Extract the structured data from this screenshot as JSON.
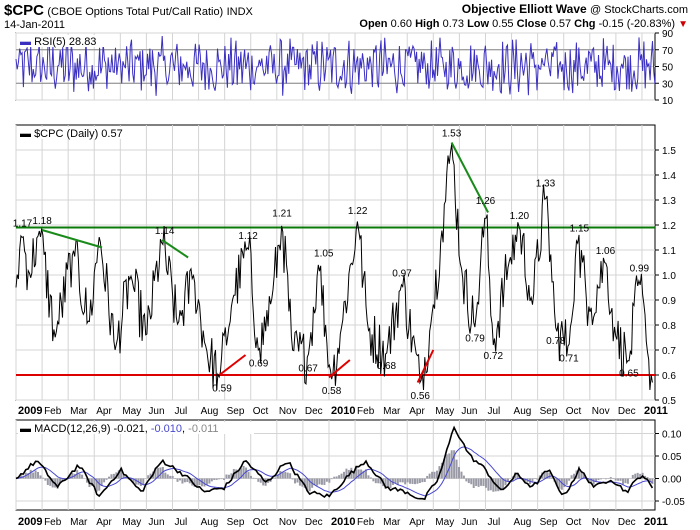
{
  "header": {
    "symbol": "$CPC",
    "name": "(CBOE Options Total Put/Call Ratio)",
    "exchange": "INDX",
    "date": "14-Jan-2011",
    "credit": "Objective Elliott Wave",
    "credit_source": "@ StockCharts.com",
    "open_label": "Open",
    "open": "0.60",
    "high_label": "High",
    "high": "0.73",
    "low_label": "Low",
    "low": "0.55",
    "close_label": "Close",
    "close": "0.57",
    "chg_label": "Chg",
    "chg": "-0.15 (-20.83%)"
  },
  "colors": {
    "rsi_line": "#3a2fc0",
    "price_line": "#000000",
    "resistance": "#0a7a0a",
    "support": "#dd0000",
    "annot_red": "#e00000",
    "annot_green": "#1a8a1a",
    "macd_line": "#000000",
    "signal_line": "#4848d0",
    "histogram": "#9a9aa6",
    "grid": "#d4d4d4"
  },
  "x_axis": {
    "labels": [
      {
        "t": 0,
        "label": "2009",
        "bold": true
      },
      {
        "t": 1,
        "label": "Feb"
      },
      {
        "t": 2,
        "label": "Mar"
      },
      {
        "t": 3,
        "label": "Apr"
      },
      {
        "t": 4,
        "label": "May"
      },
      {
        "t": 5,
        "label": "Jun"
      },
      {
        "t": 6,
        "label": "Jul"
      },
      {
        "t": 7,
        "label": "Aug"
      },
      {
        "t": 8,
        "label": "Sep"
      },
      {
        "t": 9,
        "label": "Oct"
      },
      {
        "t": 10,
        "label": "Nov"
      },
      {
        "t": 11,
        "label": "Dec"
      },
      {
        "t": 12,
        "label": "2010",
        "bold": true
      },
      {
        "t": 13,
        "label": "Feb"
      },
      {
        "t": 14,
        "label": "Mar"
      },
      {
        "t": 15,
        "label": "Apr"
      },
      {
        "t": 16,
        "label": "May"
      },
      {
        "t": 17,
        "label": "Jun"
      },
      {
        "t": 18,
        "label": "Jul"
      },
      {
        "t": 19,
        "label": "Aug"
      },
      {
        "t": 20,
        "label": "Sep"
      },
      {
        "t": 21,
        "label": "Oct"
      },
      {
        "t": 22,
        "label": "Nov"
      },
      {
        "t": 23,
        "label": "Dec"
      },
      {
        "t": 24,
        "label": "2011",
        "bold": true
      }
    ],
    "range": [
      0,
      24.5
    ]
  },
  "chart_data": [
    {
      "type": "line",
      "panel": "rsi",
      "legend": "RSI(5) 28.83",
      "ylim": [
        10,
        90
      ],
      "yticks": [
        10,
        30,
        50,
        70,
        90
      ],
      "reference_lines": [
        30,
        70
      ],
      "last": 28.83
    },
    {
      "type": "line",
      "panel": "price",
      "legend": "$CPC (Daily) 0.57",
      "ylim": [
        0.5,
        1.6
      ],
      "yticks": [
        0.5,
        0.6,
        0.7,
        0.8,
        0.9,
        1.0,
        1.1,
        1.2,
        1.3,
        1.4,
        1.5
      ],
      "horizontal_lines": [
        {
          "value": 1.19,
          "color": "resistance"
        },
        {
          "value": 0.6,
          "color": "support"
        }
      ],
      "anchors": [
        [
          0,
          0.95
        ],
        [
          0.2,
          1.17
        ],
        [
          0.5,
          1.0
        ],
        [
          0.9,
          1.18
        ],
        [
          1.5,
          0.75
        ],
        [
          2.2,
          1.1
        ],
        [
          2.8,
          0.8
        ],
        [
          3.2,
          1.16
        ],
        [
          3.8,
          0.7
        ],
        [
          4.4,
          1.0
        ],
        [
          5.0,
          0.75
        ],
        [
          5.6,
          1.14
        ],
        [
          6.2,
          0.8
        ],
        [
          6.8,
          1.0
        ],
        [
          7.3,
          0.7
        ],
        [
          7.8,
          0.59
        ],
        [
          8.3,
          0.9
        ],
        [
          8.9,
          1.12
        ],
        [
          9.3,
          0.69
        ],
        [
          9.8,
          0.9
        ],
        [
          10.2,
          1.21
        ],
        [
          10.6,
          0.7
        ],
        [
          11.2,
          0.67
        ],
        [
          11.6,
          1.05
        ],
        [
          12.1,
          0.58
        ],
        [
          12.5,
          0.8
        ],
        [
          13.1,
          1.22
        ],
        [
          13.5,
          0.78
        ],
        [
          14.2,
          0.68
        ],
        [
          14.8,
          0.97
        ],
        [
          15.5,
          0.56
        ],
        [
          15.9,
          0.8
        ],
        [
          16.3,
          1.15
        ],
        [
          16.7,
          1.53
        ],
        [
          17.1,
          1.0
        ],
        [
          17.6,
          0.79
        ],
        [
          18.0,
          1.26
        ],
        [
          18.3,
          0.72
        ],
        [
          18.9,
          1.05
        ],
        [
          19.3,
          1.2
        ],
        [
          19.8,
          0.88
        ],
        [
          20.3,
          1.33
        ],
        [
          20.7,
          0.78
        ],
        [
          21.2,
          0.71
        ],
        [
          21.5,
          1.15
        ],
        [
          22.0,
          0.85
        ],
        [
          22.6,
          1.06
        ],
        [
          23.0,
          0.75
        ],
        [
          23.5,
          0.65
        ],
        [
          23.9,
          0.99
        ],
        [
          24.2,
          0.7
        ],
        [
          24.4,
          0.57
        ]
      ],
      "annotations": [
        {
          "x": 0.25,
          "y": 1.17,
          "label": "1.17"
        },
        {
          "x": 1.0,
          "y": 1.18,
          "label": "1.18"
        },
        {
          "x": 5.7,
          "y": 1.14,
          "label": "1.14"
        },
        {
          "x": 8.9,
          "y": 1.12,
          "label": "1.12"
        },
        {
          "x": 10.2,
          "y": 1.21,
          "label": "1.21"
        },
        {
          "x": 13.1,
          "y": 1.22,
          "label": "1.22"
        },
        {
          "x": 11.8,
          "y": 1.05,
          "label": "1.05"
        },
        {
          "x": 14.8,
          "y": 0.97,
          "label": "0.97"
        },
        {
          "x": 16.7,
          "y": 1.53,
          "label": "1.53"
        },
        {
          "x": 18.0,
          "y": 1.26,
          "label": "1.26"
        },
        {
          "x": 19.3,
          "y": 1.2,
          "label": "1.20"
        },
        {
          "x": 20.3,
          "y": 1.33,
          "label": "1.33"
        },
        {
          "x": 21.6,
          "y": 1.15,
          "label": "1.15"
        },
        {
          "x": 22.6,
          "y": 1.06,
          "label": "1.06"
        },
        {
          "x": 23.9,
          "y": 0.99,
          "label": "0.99"
        },
        {
          "x": 7.9,
          "y": 0.59,
          "label": "0.59",
          "below": true
        },
        {
          "x": 9.3,
          "y": 0.69,
          "label": "0.69",
          "below": true
        },
        {
          "x": 11.2,
          "y": 0.67,
          "label": "0.67",
          "below": true
        },
        {
          "x": 12.1,
          "y": 0.58,
          "label": "0.58",
          "below": true
        },
        {
          "x": 14.2,
          "y": 0.68,
          "label": "0.68",
          "below": true
        },
        {
          "x": 15.5,
          "y": 0.56,
          "label": "0.56",
          "below": true
        },
        {
          "x": 17.6,
          "y": 0.79,
          "label": "0.79",
          "below": true
        },
        {
          "x": 18.3,
          "y": 0.72,
          "label": "0.72",
          "below": true
        },
        {
          "x": 20.7,
          "y": 0.78,
          "label": "0.78",
          "below": true
        },
        {
          "x": 21.2,
          "y": 0.71,
          "label": "0.71",
          "below": true
        },
        {
          "x": 23.5,
          "y": 0.65,
          "label": "0.65",
          "below": true
        }
      ],
      "trendlines": [
        {
          "x1": 1.0,
          "y1": 1.18,
          "x2": 3.3,
          "y2": 1.11,
          "color": "annot_green"
        },
        {
          "x1": 5.6,
          "y1": 1.14,
          "x2": 6.6,
          "y2": 1.07,
          "color": "annot_green"
        },
        {
          "x1": 16.7,
          "y1": 1.53,
          "x2": 18.1,
          "y2": 1.25,
          "color": "annot_green"
        },
        {
          "x1": 7.8,
          "y1": 0.6,
          "x2": 8.8,
          "y2": 0.68,
          "color": "annot_red"
        },
        {
          "x1": 12.0,
          "y1": 0.59,
          "x2": 12.8,
          "y2": 0.66,
          "color": "annot_red"
        },
        {
          "x1": 15.4,
          "y1": 0.57,
          "x2": 16.0,
          "y2": 0.7,
          "color": "annot_red"
        }
      ]
    },
    {
      "type": "line",
      "panel": "macd",
      "legend_prefix": "MACD(12,26,9)",
      "macd": "-0.021",
      "signal": "-0.010",
      "histogram": "-0.011",
      "ylim": [
        -0.07,
        0.13
      ],
      "yticks": [
        -0.05,
        0.0,
        0.05,
        0.1
      ],
      "anchors": [
        [
          0,
          0.0
        ],
        [
          0.8,
          0.04
        ],
        [
          1.6,
          -0.02
        ],
        [
          2.4,
          0.03
        ],
        [
          3.2,
          -0.04
        ],
        [
          4.0,
          0.02
        ],
        [
          4.8,
          -0.03
        ],
        [
          5.6,
          0.04
        ],
        [
          6.4,
          0.01
        ],
        [
          7.2,
          -0.03
        ],
        [
          8.0,
          -0.02
        ],
        [
          8.8,
          0.04
        ],
        [
          9.6,
          -0.01
        ],
        [
          10.4,
          0.04
        ],
        [
          11.2,
          -0.03
        ],
        [
          12.0,
          -0.04
        ],
        [
          12.8,
          0.01
        ],
        [
          13.4,
          0.04
        ],
        [
          14.2,
          -0.02
        ],
        [
          15.0,
          -0.03
        ],
        [
          15.6,
          -0.05
        ],
        [
          16.2,
          0.0
        ],
        [
          16.8,
          0.115
        ],
        [
          17.4,
          0.05
        ],
        [
          18.0,
          0.02
        ],
        [
          18.6,
          -0.03
        ],
        [
          19.2,
          0.01
        ],
        [
          19.8,
          -0.02
        ],
        [
          20.4,
          0.02
        ],
        [
          21.0,
          -0.04
        ],
        [
          21.6,
          0.02
        ],
        [
          22.2,
          -0.02
        ],
        [
          22.8,
          0.0
        ],
        [
          23.4,
          -0.03
        ],
        [
          24.0,
          0.01
        ],
        [
          24.4,
          -0.021
        ]
      ]
    }
  ]
}
